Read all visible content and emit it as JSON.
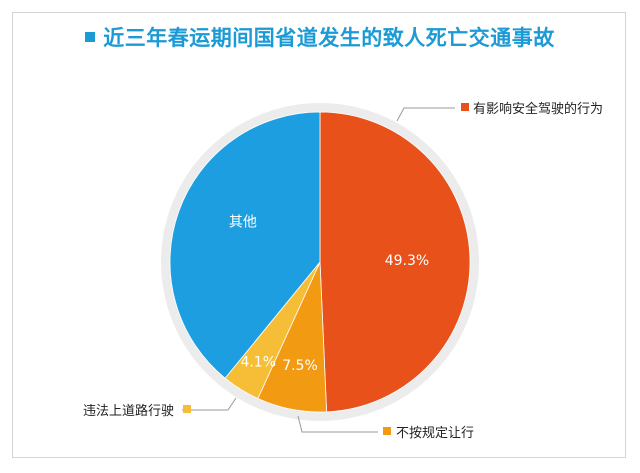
{
  "title": "近三年春运期间国省道发生的致人死亡交通事故",
  "colors": {
    "title": "#1b9ad6",
    "ring": "#ececec"
  },
  "chart_data": {
    "type": "pie",
    "title": "近三年春运期间国省道发生的致人死亡交通事故",
    "start_angle_deg": 0,
    "direction": "clockwise",
    "slices": [
      {
        "label": "有影响安全驾驶的行为",
        "value": 49.3,
        "data_label": "49.3%",
        "color": "#e8521a"
      },
      {
        "label": "不按规定让行",
        "value": 7.5,
        "data_label": "7.5%",
        "color": "#f29a12"
      },
      {
        "label": "违法上道路行驶",
        "value": 4.1,
        "data_label": "4.1%",
        "color": "#f6bd36"
      },
      {
        "label": "其他",
        "value": 39.1,
        "data_label": "其他",
        "color": "#1d9ee0"
      }
    ],
    "legend_placement": "around"
  }
}
